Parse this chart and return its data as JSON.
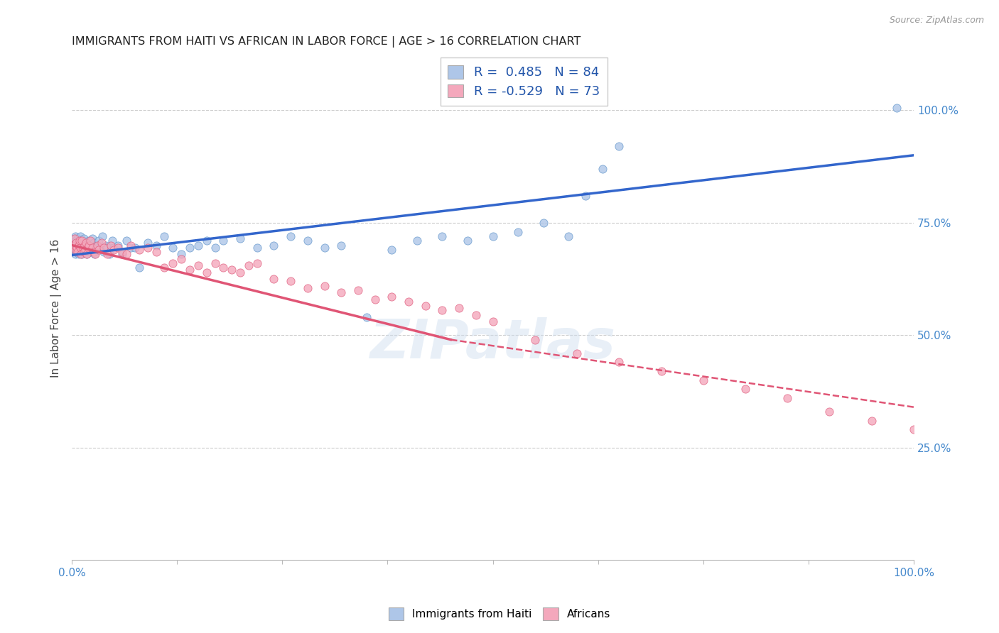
{
  "title": "IMMIGRANTS FROM HAITI VS AFRICAN IN LABOR FORCE | AGE > 16 CORRELATION CHART",
  "source": "Source: ZipAtlas.com",
  "ylabel": "In Labor Force | Age > 16",
  "xlim": [
    0.0,
    1.0
  ],
  "ylim": [
    0.0,
    1.12
  ],
  "ytick_labels": [
    "25.0%",
    "50.0%",
    "75.0%",
    "100.0%"
  ],
  "ytick_values": [
    0.25,
    0.5,
    0.75,
    1.0
  ],
  "haiti_color": "#aec6e8",
  "africa_color": "#f4a8bc",
  "haiti_edge": "#6699cc",
  "africa_edge": "#e06080",
  "trendline_haiti_color": "#3366cc",
  "trendline_africa_color": "#e05575",
  "R_haiti": 0.485,
  "N_haiti": 84,
  "R_africa": -0.529,
  "N_africa": 73,
  "watermark": "ZIPatlas",
  "grid_color": "#cccccc",
  "background_color": "#ffffff",
  "haiti_scatter_x": [
    0.001,
    0.002,
    0.003,
    0.003,
    0.004,
    0.004,
    0.005,
    0.005,
    0.006,
    0.006,
    0.007,
    0.007,
    0.008,
    0.008,
    0.009,
    0.01,
    0.01,
    0.011,
    0.012,
    0.012,
    0.013,
    0.013,
    0.014,
    0.015,
    0.015,
    0.016,
    0.017,
    0.018,
    0.019,
    0.02,
    0.021,
    0.022,
    0.023,
    0.024,
    0.025,
    0.026,
    0.027,
    0.028,
    0.03,
    0.032,
    0.034,
    0.036,
    0.038,
    0.04,
    0.042,
    0.045,
    0.048,
    0.05,
    0.055,
    0.06,
    0.065,
    0.07,
    0.075,
    0.08,
    0.09,
    0.1,
    0.11,
    0.12,
    0.13,
    0.14,
    0.15,
    0.16,
    0.17,
    0.18,
    0.2,
    0.22,
    0.24,
    0.26,
    0.28,
    0.3,
    0.32,
    0.35,
    0.38,
    0.41,
    0.44,
    0.47,
    0.5,
    0.53,
    0.56,
    0.59,
    0.61,
    0.63,
    0.65,
    0.98
  ],
  "haiti_scatter_y": [
    0.685,
    0.7,
    0.695,
    0.715,
    0.68,
    0.72,
    0.685,
    0.71,
    0.69,
    0.705,
    0.7,
    0.715,
    0.68,
    0.695,
    0.71,
    0.685,
    0.72,
    0.695,
    0.68,
    0.705,
    0.71,
    0.695,
    0.715,
    0.685,
    0.7,
    0.69,
    0.695,
    0.68,
    0.7,
    0.71,
    0.695,
    0.685,
    0.7,
    0.715,
    0.69,
    0.705,
    0.68,
    0.695,
    0.7,
    0.71,
    0.695,
    0.72,
    0.685,
    0.7,
    0.695,
    0.68,
    0.71,
    0.695,
    0.7,
    0.68,
    0.71,
    0.695,
    0.695,
    0.65,
    0.705,
    0.7,
    0.72,
    0.695,
    0.68,
    0.695,
    0.7,
    0.71,
    0.695,
    0.71,
    0.715,
    0.695,
    0.7,
    0.72,
    0.71,
    0.695,
    0.7,
    0.54,
    0.69,
    0.71,
    0.72,
    0.71,
    0.72,
    0.73,
    0.75,
    0.72,
    0.81,
    0.87,
    0.92,
    1.005
  ],
  "africa_scatter_x": [
    0.002,
    0.003,
    0.004,
    0.005,
    0.006,
    0.007,
    0.008,
    0.009,
    0.01,
    0.011,
    0.012,
    0.013,
    0.014,
    0.015,
    0.016,
    0.017,
    0.018,
    0.019,
    0.02,
    0.022,
    0.024,
    0.026,
    0.028,
    0.03,
    0.032,
    0.035,
    0.038,
    0.042,
    0.046,
    0.05,
    0.055,
    0.06,
    0.065,
    0.07,
    0.08,
    0.09,
    0.1,
    0.11,
    0.12,
    0.13,
    0.14,
    0.15,
    0.16,
    0.17,
    0.18,
    0.19,
    0.2,
    0.21,
    0.22,
    0.24,
    0.26,
    0.28,
    0.3,
    0.32,
    0.34,
    0.36,
    0.38,
    0.4,
    0.42,
    0.44,
    0.46,
    0.48,
    0.5,
    0.55,
    0.6,
    0.65,
    0.7,
    0.75,
    0.8,
    0.85,
    0.9,
    0.95,
    1.0
  ],
  "africa_scatter_y": [
    0.7,
    0.715,
    0.69,
    0.705,
    0.695,
    0.685,
    0.7,
    0.71,
    0.695,
    0.68,
    0.71,
    0.695,
    0.685,
    0.7,
    0.69,
    0.705,
    0.68,
    0.695,
    0.7,
    0.71,
    0.695,
    0.685,
    0.68,
    0.7,
    0.69,
    0.705,
    0.695,
    0.68,
    0.7,
    0.69,
    0.695,
    0.685,
    0.68,
    0.7,
    0.69,
    0.695,
    0.685,
    0.65,
    0.66,
    0.67,
    0.645,
    0.655,
    0.64,
    0.66,
    0.65,
    0.645,
    0.64,
    0.655,
    0.66,
    0.625,
    0.62,
    0.605,
    0.61,
    0.595,
    0.6,
    0.58,
    0.585,
    0.575,
    0.565,
    0.555,
    0.56,
    0.545,
    0.53,
    0.49,
    0.46,
    0.44,
    0.42,
    0.4,
    0.38,
    0.36,
    0.33,
    0.31,
    0.29
  ],
  "haiti_trendline": [
    0.0,
    1.0,
    0.678,
    0.9
  ],
  "africa_trendline_solid": [
    0.0,
    0.45,
    0.7,
    0.49
  ],
  "africa_trendline_dash": [
    0.45,
    1.0,
    0.49,
    0.34
  ]
}
